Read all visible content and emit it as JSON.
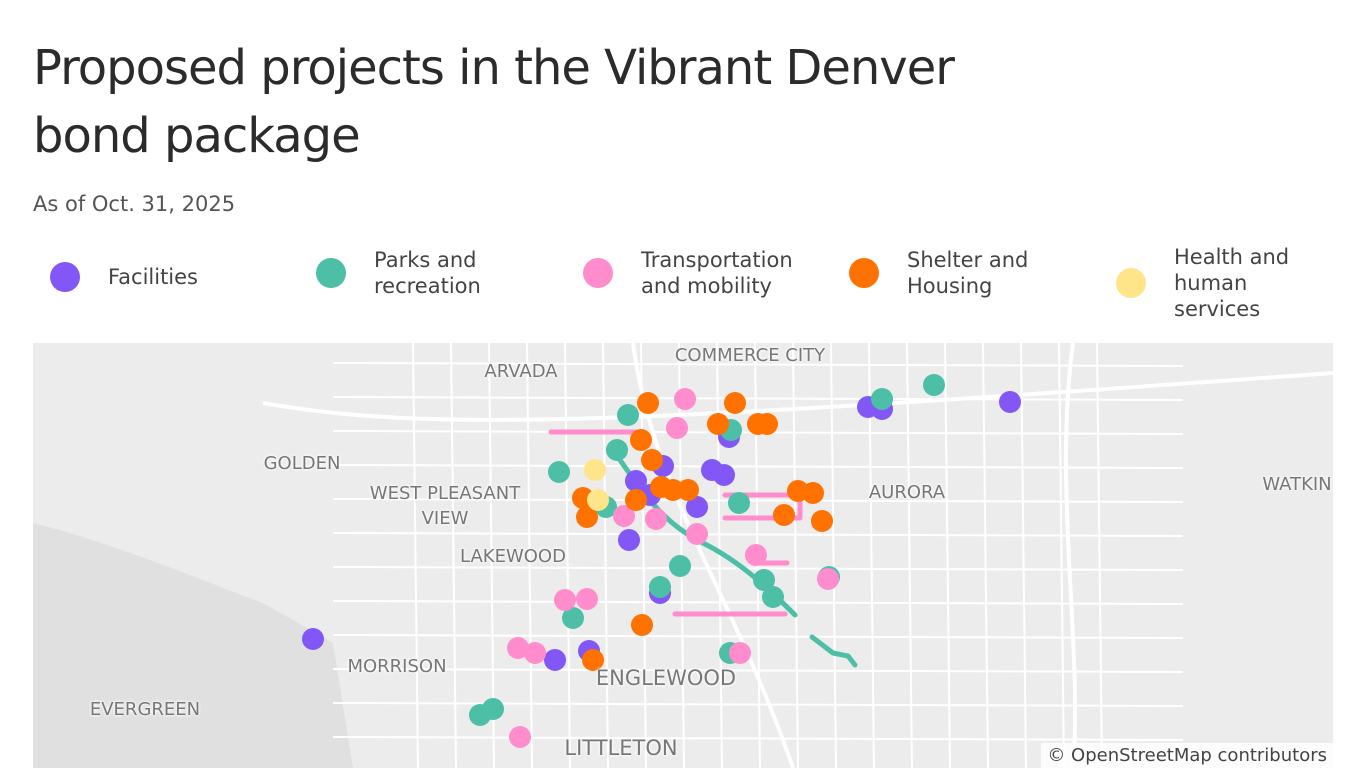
{
  "header": {
    "title": "Proposed projects in the Vibrant Denver bond package",
    "subtitle": "As of Oct. 31, 2025"
  },
  "legend": [
    {
      "label": "Facilities",
      "color": "#8257f5"
    },
    {
      "label": "Parks and recreation",
      "color": "#4cbfa6"
    },
    {
      "label": "Transportation and mobility",
      "color": "#ff8ccc"
    },
    {
      "label": "Shelter and Housing",
      "color": "#ff7200"
    },
    {
      "label": "Health and human services",
      "color": "#ffe58a"
    }
  ],
  "map": {
    "places": [
      "COMMERCE CITY",
      "ARVADA",
      "GOLDEN",
      "WEST PLEASANT VIEW",
      "AURORA",
      "WATKIN",
      "LAKEWOOD",
      "MORRISON",
      "ENGLEWOOD",
      "EVERGREEN",
      "LITTLETON"
    ],
    "attribution": "© OpenStreetMap contributors"
  }
}
